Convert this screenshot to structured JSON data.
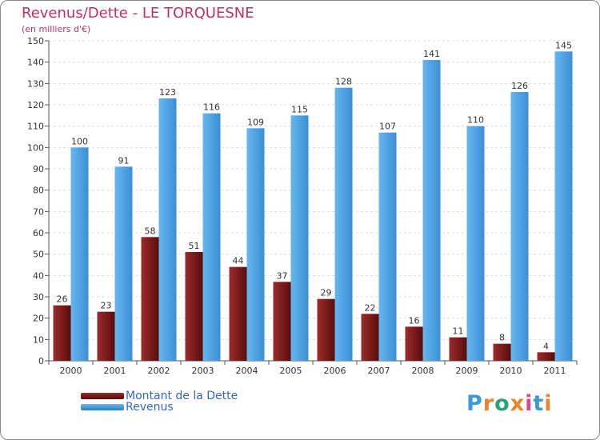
{
  "chart_data": {
    "type": "bar",
    "title": "Revenus/Dette - LE TORQUESNE",
    "subtitle": "(en milliers d'€)",
    "categories": [
      "2000",
      "2001",
      "2002",
      "2003",
      "2004",
      "2005",
      "2006",
      "2007",
      "2008",
      "2009",
      "2010",
      "2011"
    ],
    "series": [
      {
        "name": "Montant de la Dette",
        "color": "#7a1a1a",
        "values": [
          26,
          23,
          58,
          51,
          44,
          37,
          29,
          22,
          16,
          11,
          8,
          4
        ]
      },
      {
        "name": "Revenus",
        "color": "#4a9ee0",
        "values": [
          100,
          91,
          123,
          116,
          109,
          115,
          128,
          107,
          141,
          110,
          126,
          145
        ]
      }
    ],
    "ylim": [
      0,
      150
    ],
    "yticks": [
      0,
      10,
      20,
      30,
      40,
      50,
      60,
      70,
      80,
      90,
      100,
      110,
      120,
      130,
      140,
      150
    ],
    "grid": true,
    "legend_position": "bottom-left"
  },
  "legend": {
    "debt_label": "Montant de la Dette",
    "revenue_label": "Revenus"
  },
  "logo": {
    "text": "Proxiti",
    "colors": [
      "#3a9ad9",
      "#e8862a",
      "#2aa37a",
      "#e8862a",
      "#d94a8a",
      "#3a9ad9",
      "#e8862a"
    ]
  }
}
